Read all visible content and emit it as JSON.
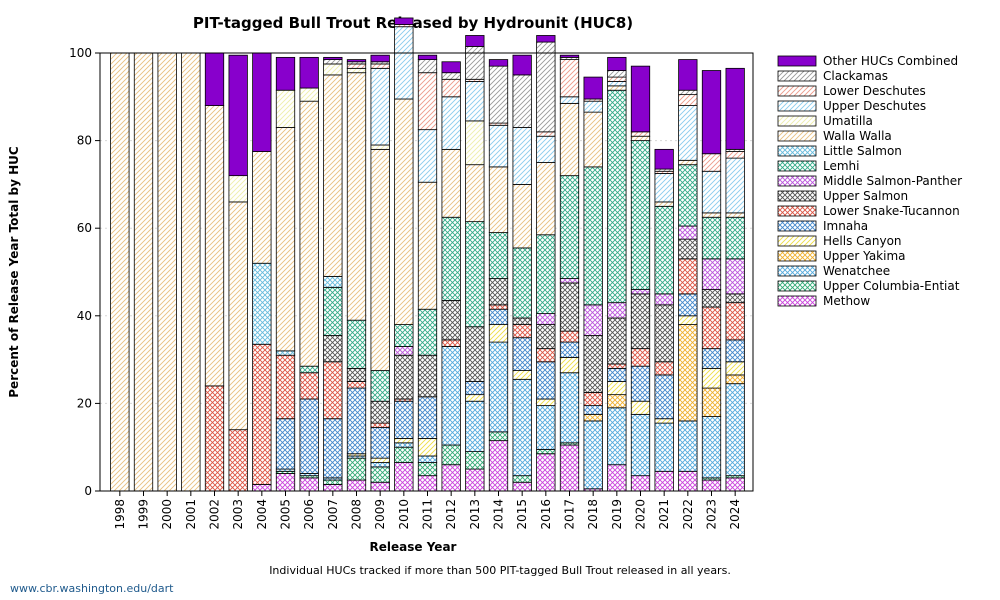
{
  "chart_data": {
    "type": "bar",
    "stacked": true,
    "title": "PIT-tagged Bull Trout Released by Hydrounit (HUC8)",
    "xlabel": "Release Year",
    "ylabel": "Percent of Release Year Total by HUC",
    "ylim": [
      0,
      100
    ],
    "yticks": [
      0,
      20,
      40,
      60,
      80,
      100
    ],
    "grid": true,
    "legend_position": "right",
    "categories": [
      "1998",
      "1999",
      "2000",
      "2001",
      "2002",
      "2003",
      "2004",
      "2005",
      "2006",
      "2007",
      "2008",
      "2009",
      "2010",
      "2011",
      "2012",
      "2013",
      "2014",
      "2015",
      "2016",
      "2017",
      "2018",
      "2019",
      "2020",
      "2021",
      "2022",
      "2023",
      "2024"
    ],
    "series": [
      {
        "name": "Methow",
        "color": "#cc44dd",
        "pattern": "grid",
        "values": [
          0,
          0,
          0,
          0,
          0,
          0,
          1.5,
          4,
          3,
          1.5,
          2.5,
          2,
          6.5,
          3.5,
          6,
          5,
          11.5,
          2,
          8.5,
          10.5,
          0.5,
          6,
          3.5,
          4.5,
          4.5,
          2.5,
          3
        ]
      },
      {
        "name": "Upper Columbia-Entiat",
        "color": "#33aa77",
        "pattern": "grid",
        "values": [
          0,
          0,
          0,
          0,
          0,
          0,
          0,
          0.5,
          0.5,
          1,
          5,
          3.5,
          3.5,
          3,
          4.5,
          4,
          2,
          1.5,
          1,
          0.5,
          0,
          0,
          0,
          0,
          0,
          0.5,
          0.5
        ]
      },
      {
        "name": "Wenatchee",
        "color": "#55aadd",
        "pattern": "grid",
        "values": [
          0,
          0,
          0,
          0,
          0,
          0,
          0,
          0.5,
          0.5,
          0.5,
          0.5,
          1,
          1,
          1.5,
          22.5,
          11.5,
          20.5,
          22,
          10,
          16,
          15.5,
          13,
          14,
          11,
          11.5,
          14,
          21
        ]
      },
      {
        "name": "Upper Yakima",
        "color": "#f0b030",
        "pattern": "grid",
        "values": [
          0,
          0,
          0,
          0,
          0,
          0,
          0,
          0,
          0,
          0,
          0,
          0,
          0,
          0,
          0,
          0,
          0,
          0,
          0,
          0,
          1.5,
          3,
          0,
          0,
          22,
          6.5,
          2
        ]
      },
      {
        "name": "Hells Canyon",
        "color": "#eedd44",
        "pattern": "lines",
        "values": [
          0,
          0,
          0,
          0,
          0,
          0,
          0,
          0,
          0,
          0,
          0.5,
          1,
          1,
          4,
          0,
          1.5,
          4,
          2,
          1.5,
          3.5,
          0,
          3,
          3,
          1,
          2,
          4.5,
          3
        ]
      },
      {
        "name": "Imnaha",
        "color": "#4488cc",
        "pattern": "grid",
        "values": [
          0,
          0,
          0,
          0,
          0,
          0,
          0,
          11.5,
          17,
          13.5,
          15,
          7,
          8.5,
          9.5,
          0,
          3,
          3.5,
          7.5,
          8.5,
          3.5,
          2,
          3,
          8,
          10,
          5,
          4.5,
          5
        ]
      },
      {
        "name": "Lower Snake-Tucannon",
        "color": "#dd5544",
        "pattern": "grid",
        "values": [
          0,
          0,
          0,
          0,
          24,
          14,
          32,
          14.5,
          6,
          13,
          1.5,
          1,
          0.5,
          0,
          1.5,
          0,
          1,
          3,
          3,
          2.5,
          3,
          1,
          4,
          3,
          8,
          9.5,
          8.5
        ]
      },
      {
        "name": "Upper Salmon",
        "color": "#555555",
        "pattern": "grid",
        "values": [
          0,
          0,
          0,
          0,
          0,
          0,
          0,
          0,
          0,
          6,
          3,
          5,
          10,
          9.5,
          9,
          12.5,
          6,
          1.5,
          5.5,
          11,
          13,
          10.5,
          12.5,
          13,
          4.5,
          4,
          2
        ]
      },
      {
        "name": "Middle Salmon-Panther",
        "color": "#bb55dd",
        "pattern": "grid",
        "values": [
          0,
          0,
          0,
          0,
          0,
          0,
          0,
          0,
          0,
          0,
          0,
          0,
          2,
          0,
          0,
          0,
          0,
          0,
          2.5,
          1,
          7,
          3.5,
          1,
          2.5,
          3,
          7,
          8
        ]
      },
      {
        "name": "Lemhi",
        "color": "#33aa88",
        "pattern": "grid",
        "values": [
          0,
          0,
          0,
          0,
          0,
          0,
          0,
          0,
          1.5,
          11,
          11,
          7,
          5,
          10.5,
          19,
          24,
          10.5,
          16,
          18,
          23.5,
          31.5,
          48.5,
          34,
          20,
          14,
          9.5,
          9.5
        ]
      },
      {
        "name": "Little Salmon",
        "color": "#66bbdd",
        "pattern": "grid",
        "values": [
          0,
          0,
          0,
          0,
          0,
          0,
          18.5,
          1,
          0,
          2.5,
          0,
          0,
          0,
          0,
          0,
          0,
          0,
          0,
          0,
          0,
          0,
          0,
          0,
          0,
          0,
          0,
          0
        ]
      },
      {
        "name": "Walla Walla",
        "color": "#e8c080",
        "pattern": "lines",
        "values": [
          100,
          100,
          100,
          100,
          64,
          52,
          25.5,
          51,
          60.5,
          46,
          56.5,
          50.5,
          51.5,
          29,
          15.5,
          13,
          15,
          14.5,
          16.5,
          16.5,
          12.5,
          1,
          1,
          1,
          1,
          1,
          1
        ]
      },
      {
        "name": "Umatilla",
        "color": "#eeeeaa",
        "pattern": "lines",
        "values": [
          0,
          0,
          0,
          0,
          0,
          6,
          0,
          8.5,
          3,
          2.5,
          1,
          1,
          0,
          0,
          0,
          10,
          0,
          0,
          0,
          0,
          0,
          0,
          0,
          0,
          0,
          0,
          0
        ]
      },
      {
        "name": "Upper Deschutes",
        "color": "#88ccee",
        "pattern": "lines",
        "values": [
          0,
          0,
          0,
          0,
          0,
          0,
          0,
          0,
          0,
          0,
          0,
          17.5,
          16.5,
          12,
          12,
          9,
          9.5,
          13,
          6,
          1.5,
          2.5,
          1,
          0,
          6.5,
          12.5,
          9.5,
          12.5
        ]
      },
      {
        "name": "Lower Deschutes",
        "color": "#ee9988",
        "pattern": "lines",
        "values": [
          0,
          0,
          0,
          0,
          0,
          0,
          0,
          0,
          0,
          0,
          1,
          1,
          0.5,
          13,
          4,
          0.5,
          0.5,
          0,
          1,
          8.5,
          0.5,
          1,
          1,
          0.5,
          2.5,
          4,
          1.5
        ]
      },
      {
        "name": "Clackamas",
        "color": "#999999",
        "pattern": "lines",
        "values": [
          0,
          0,
          0,
          0,
          0,
          0,
          0,
          0,
          0,
          1,
          0.5,
          0.5,
          0,
          3,
          1.5,
          7.5,
          13,
          12,
          20.5,
          0.5,
          0,
          1.5,
          0,
          0.5,
          1,
          0,
          0.5
        ]
      },
      {
        "name": "Other HUCs Combined",
        "color": "#8800cc",
        "pattern": "solid",
        "values": [
          0,
          0,
          0,
          0,
          12,
          27.5,
          22.5,
          7.5,
          7,
          0.5,
          0.5,
          1.5,
          1.5,
          1,
          2.5,
          2.5,
          1.5,
          4.5,
          1.5,
          0.5,
          5,
          3,
          15,
          4.5,
          7,
          19,
          18.5
        ]
      }
    ],
    "footnote": "Individual HUCs tracked if more than 500 PIT-tagged Bull Trout released in all years.",
    "credit": "www.cbr.washington.edu/dart"
  }
}
